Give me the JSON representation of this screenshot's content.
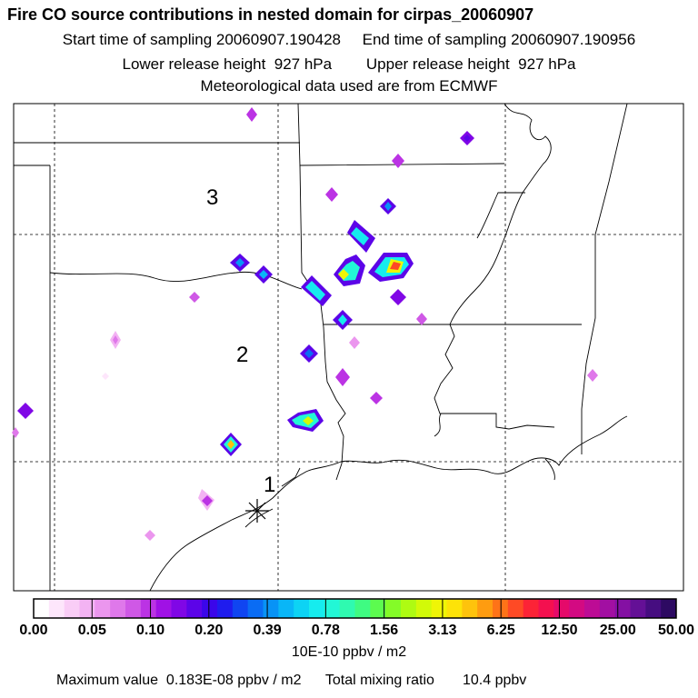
{
  "header": {
    "title": "Fire CO source contributions in nested domain for cirpas_20060907",
    "line1": "Start time of sampling 20060907.190428     End time of sampling 20060907.190956",
    "line2": "Lower release height  927 hPa        Upper release height  927 hPa",
    "line3": "Meteorological data used are from ECMWF"
  },
  "map": {
    "region_labels": [
      "3",
      "2",
      "1"
    ],
    "release_site_marker": "asterisk"
  },
  "colorbar": {
    "tick_labels": [
      "0.00",
      "0.05",
      "0.10",
      "0.20",
      "0.39",
      "0.78",
      "1.56",
      "3.13",
      "6.25",
      "12.50",
      "25.00",
      "50.00"
    ],
    "colors": [
      "#ffffff",
      "#fde6fb",
      "#f9cdf6",
      "#f3b3f3",
      "#eb96ee",
      "#df78ea",
      "#cf58e6",
      "#bb33e4",
      "#a011e5",
      "#8007e6",
      "#5c04e8",
      "#3b06ea",
      "#1f1cee",
      "#1045f1",
      "#0a6cf4",
      "#0893f6",
      "#09b6f7",
      "#0dd3f4",
      "#16ecee",
      "#22f7d6",
      "#2ffab0",
      "#3ffb82",
      "#5cfb4f",
      "#84fb28",
      "#aefb12",
      "#d2fa08",
      "#eff506",
      "#fde308",
      "#fec30c",
      "#fe9c10",
      "#fe7318",
      "#fe4a25",
      "#fc2336",
      "#f4104f",
      "#e50a6a",
      "#d30a82",
      "#bd0c95",
      "#a20fa2",
      "#8410a3",
      "#641096",
      "#460d80",
      "#2d0a62"
    ],
    "units": "10E-10 ppbv / m2"
  },
  "footer": {
    "text": "Maximum value  0.183E-08 ppbv / m2      Total mixing ratio       10.4 ppbv"
  }
}
